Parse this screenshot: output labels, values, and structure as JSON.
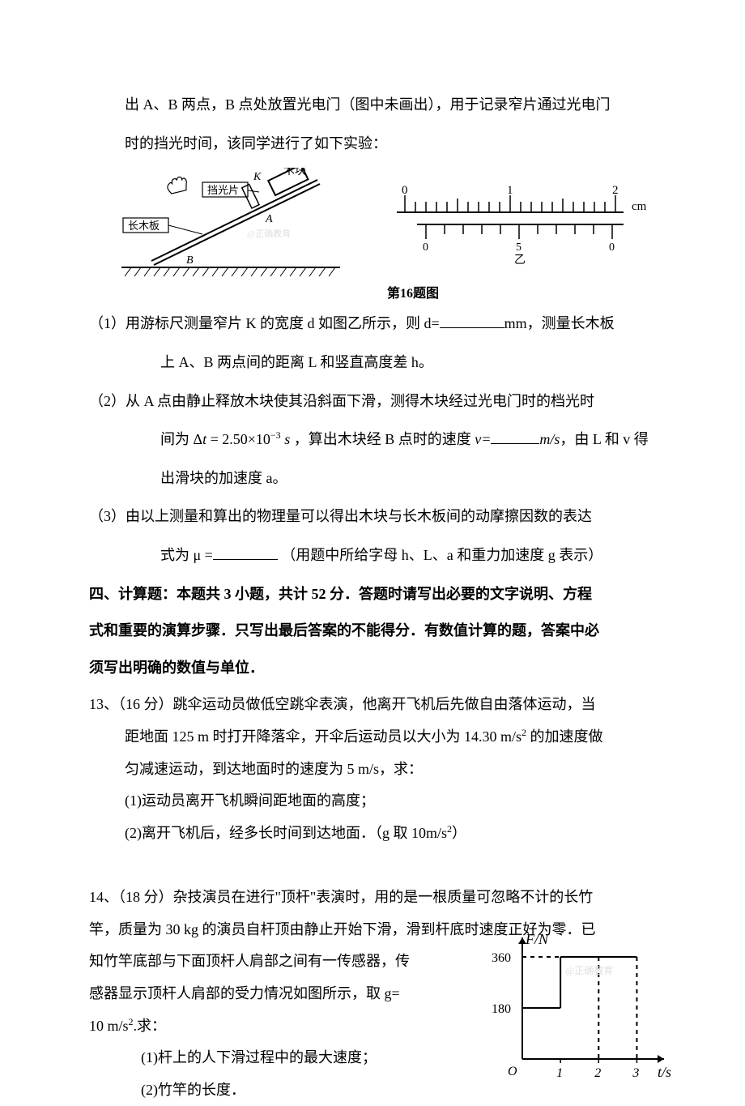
{
  "intro": {
    "line1": "出 A、B 两点，B 点处放置光电门（图中未画出），用于记录窄片通过光电门",
    "line2": "时的挡光时间，该同学进行了如下实验："
  },
  "figure16": {
    "caption": "第16题图",
    "left_diagram": {
      "labels": [
        "挡光片",
        "木块",
        "K",
        "长木板",
        "A",
        "B"
      ],
      "watermark": "@正确教育",
      "line_color": "#000000"
    },
    "right_diagram": {
      "type": "vernier",
      "main_scale": [
        "0",
        "1",
        "2"
      ],
      "vernier_scale": [
        "0",
        "5",
        "0"
      ],
      "unit": "cm",
      "label": "乙",
      "line_color": "#000000"
    }
  },
  "q1": {
    "prefix": "（1）用游标尺测量窄片 K 的宽度 d 如图乙所示，则 d=",
    "suffix": "mm，测量长木板",
    "line2": "上 A、B 两点间的距离 L 和竖直高度差 h。"
  },
  "q2": {
    "prefix": "（2）从 A 点由静止释放木块使其沿斜面下滑，测得木块经过光电门时的档光时",
    "line2_before": "间为",
    "formula": "Δt = 2.50×10⁻³ s",
    "line2_mid": "，算出木块经 B 点时的速度 ",
    "v_label": "v=",
    "line2_after": "m/s",
    "line2_end": "，由 L 和 v 得",
    "line3": "出滑块的加速度 a。"
  },
  "q3": {
    "line1": "（3）由以上测量和算出的物理量可以得出木块与长木板间的动摩擦因数的表达",
    "line2_before": "式为 μ =",
    "line2_after": "（用题中所给字母 h、L、a 和重力加速度 g 表示）"
  },
  "section4": {
    "line1": "四、计算题：本题共 3 小题，共计 52 分．答题时请写出必要的文字说明、方程",
    "line2": "式和重要的演算步骤．只写出最后答案的不能得分．有数值计算的题，答案中必",
    "line3": "须写出明确的数值与单位．"
  },
  "p13": {
    "head_before": "13、（16 分）跳伞运动员做低空跳伞表演，他离开飞机后先做自由落体运动，当",
    "line2": "距地面 125 m 时打开降落伞，开伞后运动员以大小为 14.30 m/s² 的加速度做",
    "line3": "匀减速运动，到达地面时的速度为 5 m/s，求：",
    "sub1": "(1)运动员离开飞机瞬间距地面的高度；",
    "sub2": "(2)离开飞机后，经多长时间到达地面．（g 取 10m/s²）"
  },
  "p14": {
    "head": "14、（18 分）杂技演员在进行\"顶杆\"表演时，用的是一根质量可忽略不计的长竹",
    "line2": "竿，质量为 30 kg 的演员自杆顶由静止开始下滑，滑到杆底时速度正好为零．已",
    "line3": "知竹竿底部与下面顶杆人肩部之间有一传感器，传",
    "line4": "感器显示顶杆人肩部的受力情况如图所示，取 g=",
    "line5": "10 m/s².求：",
    "sub1": "(1)杆上的人下滑过程中的最大速度；",
    "sub2": "(2)竹竿的长度．",
    "chart": {
      "type": "line",
      "y_label": "F/N",
      "x_label": "t/s",
      "x_ticks": [
        0,
        1,
        2,
        3
      ],
      "y_ticks": [
        180,
        360
      ],
      "ylim": [
        0,
        400
      ],
      "xlim": [
        0,
        3.5
      ],
      "O_label": "O",
      "watermark": "@正确教育",
      "segments": [
        {
          "from": [
            0,
            180
          ],
          "to": [
            1,
            180
          ],
          "style": "solid"
        },
        {
          "from": [
            1,
            180
          ],
          "to": [
            1,
            360
          ],
          "style": "solid"
        },
        {
          "from": [
            1,
            360
          ],
          "to": [
            3,
            360
          ],
          "style": "solid"
        },
        {
          "from": [
            3,
            360
          ],
          "to": [
            3,
            0
          ],
          "style": "dash"
        },
        {
          "from": [
            0,
            360
          ],
          "to": [
            1,
            360
          ],
          "style": "dash"
        },
        {
          "from": [
            2,
            360
          ],
          "to": [
            2,
            0
          ],
          "style": "dash"
        }
      ],
      "axis_color": "#000000",
      "line_color": "#000000",
      "dash_color": "#000000",
      "line_width": 2,
      "font_size": 16,
      "background": "#ffffff"
    }
  }
}
